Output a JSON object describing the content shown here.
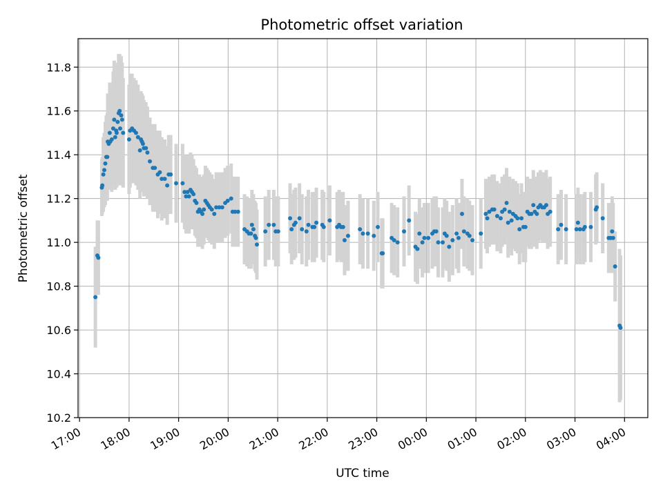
{
  "chart_data": {
    "type": "scatter",
    "title": "Photometric offset variation",
    "xlabel": "UTC time",
    "ylabel": "Photometric offset",
    "x_unit": "hours",
    "x_tick_labels": [
      "17:00",
      "18:00",
      "19:00",
      "20:00",
      "21:00",
      "22:00",
      "23:00",
      "00:00",
      "01:00",
      "02:00",
      "03:00",
      "04:00"
    ],
    "x_tick_values": [
      17,
      18,
      19,
      20,
      21,
      22,
      23,
      24,
      25,
      26,
      27,
      28
    ],
    "xlim": [
      16.97,
      28.47
    ],
    "ylim": [
      10.2,
      11.93
    ],
    "y_ticks": [
      10.2,
      10.4,
      10.6,
      10.8,
      11.0,
      11.2,
      11.4,
      11.6,
      11.8
    ],
    "y_tick_labels": [
      "10.2",
      "10.4",
      "10.6",
      "10.8",
      "11.0",
      "11.2",
      "11.4",
      "11.6",
      "11.8"
    ],
    "grid": true,
    "colors": {
      "points": "#1f77b4",
      "errorbars": "#d3d3d3",
      "grid": "#b0b0b0"
    },
    "series": [
      {
        "points": [
          [
            17.32,
            10.75,
            0.23
          ],
          [
            17.36,
            10.94,
            0.16
          ],
          [
            17.38,
            10.93,
            0.17
          ],
          [
            17.45,
            11.25,
            0.13
          ],
          [
            17.46,
            11.26,
            0.13
          ],
          [
            17.48,
            11.31,
            0.17
          ],
          [
            17.5,
            11.33,
            0.17
          ],
          [
            17.52,
            11.36,
            0.19
          ],
          [
            17.54,
            11.39,
            0.19
          ],
          [
            17.56,
            11.39,
            0.2
          ],
          [
            17.57,
            11.46,
            0.22
          ],
          [
            17.59,
            11.45,
            0.21
          ],
          [
            17.61,
            11.5,
            0.23
          ],
          [
            17.62,
            11.46,
            0.22
          ],
          [
            17.65,
            11.47,
            0.24
          ],
          [
            17.68,
            11.52,
            0.26
          ],
          [
            17.7,
            11.56,
            0.27
          ],
          [
            17.72,
            11.48,
            0.24
          ],
          [
            17.74,
            11.51,
            0.25
          ],
          [
            17.75,
            11.5,
            0.25
          ],
          [
            17.77,
            11.55,
            0.27
          ],
          [
            17.79,
            11.59,
            0.27
          ],
          [
            17.81,
            11.6,
            0.26
          ],
          [
            17.82,
            11.52,
            0.26
          ],
          [
            17.84,
            11.58,
            0.27
          ],
          [
            17.86,
            11.56,
            0.26
          ],
          [
            17.88,
            11.5,
            0.25
          ],
          [
            18.0,
            11.47,
            0.25
          ],
          [
            18.02,
            11.51,
            0.26
          ],
          [
            18.06,
            11.52,
            0.25
          ],
          [
            18.1,
            11.51,
            0.24
          ],
          [
            18.14,
            11.5,
            0.24
          ],
          [
            18.18,
            11.48,
            0.24
          ],
          [
            18.22,
            11.42,
            0.22
          ],
          [
            18.24,
            11.47,
            0.22
          ],
          [
            18.26,
            11.46,
            0.22
          ],
          [
            18.28,
            11.45,
            0.22
          ],
          [
            18.3,
            11.43,
            0.22
          ],
          [
            18.34,
            11.43,
            0.21
          ],
          [
            18.37,
            11.41,
            0.21
          ],
          [
            18.42,
            11.37,
            0.2
          ],
          [
            18.48,
            11.34,
            0.2
          ],
          [
            18.52,
            11.34,
            0.2
          ],
          [
            18.58,
            11.31,
            0.2
          ],
          [
            18.62,
            11.32,
            0.19
          ],
          [
            18.66,
            11.29,
            0.19
          ],
          [
            18.72,
            11.29,
            0.18
          ],
          [
            18.77,
            11.26,
            0.18
          ],
          [
            18.8,
            11.31,
            0.18
          ],
          [
            18.84,
            11.31,
            0.18
          ],
          [
            18.95,
            11.27,
            0.18
          ],
          [
            19.08,
            11.27,
            0.18
          ],
          [
            19.12,
            11.23,
            0.17
          ],
          [
            19.15,
            11.21,
            0.17
          ],
          [
            19.18,
            11.23,
            0.17
          ],
          [
            19.21,
            11.21,
            0.17
          ],
          [
            19.24,
            11.24,
            0.17
          ],
          [
            19.27,
            11.23,
            0.17
          ],
          [
            19.3,
            11.22,
            0.16
          ],
          [
            19.33,
            11.19,
            0.16
          ],
          [
            19.36,
            11.18,
            0.16
          ],
          [
            19.39,
            11.14,
            0.16
          ],
          [
            19.42,
            11.15,
            0.16
          ],
          [
            19.45,
            11.14,
            0.16
          ],
          [
            19.48,
            11.13,
            0.16
          ],
          [
            19.51,
            11.15,
            0.16
          ],
          [
            19.54,
            11.19,
            0.16
          ],
          [
            19.57,
            11.18,
            0.16
          ],
          [
            19.6,
            11.17,
            0.16
          ],
          [
            19.63,
            11.16,
            0.16
          ],
          [
            19.67,
            11.15,
            0.16
          ],
          [
            19.72,
            11.13,
            0.16
          ],
          [
            19.76,
            11.16,
            0.16
          ],
          [
            19.82,
            11.16,
            0.16
          ],
          [
            19.88,
            11.16,
            0.16
          ],
          [
            19.94,
            11.18,
            0.16
          ],
          [
            19.99,
            11.19,
            0.16
          ],
          [
            20.06,
            11.2,
            0.16
          ],
          [
            20.09,
            11.14,
            0.16
          ],
          [
            20.14,
            11.14,
            0.16
          ],
          [
            20.2,
            11.14,
            0.16
          ],
          [
            20.33,
            11.06,
            0.16
          ],
          [
            20.38,
            11.05,
            0.16
          ],
          [
            20.42,
            11.04,
            0.16
          ],
          [
            20.46,
            11.04,
            0.16
          ],
          [
            20.48,
            11.08,
            0.16
          ],
          [
            20.51,
            11.06,
            0.16
          ],
          [
            20.54,
            11.03,
            0.16
          ],
          [
            20.56,
            11.02,
            0.16
          ],
          [
            20.58,
            10.99,
            0.16
          ],
          [
            20.75,
            11.05,
            0.16
          ],
          [
            20.82,
            11.08,
            0.16
          ],
          [
            20.92,
            11.08,
            0.16
          ],
          [
            20.96,
            11.05,
            0.16
          ],
          [
            21.01,
            11.05,
            0.16
          ],
          [
            21.25,
            11.11,
            0.16
          ],
          [
            21.28,
            11.06,
            0.16
          ],
          [
            21.33,
            11.08,
            0.16
          ],
          [
            21.36,
            11.09,
            0.16
          ],
          [
            21.44,
            11.11,
            0.16
          ],
          [
            21.49,
            11.06,
            0.16
          ],
          [
            21.58,
            11.05,
            0.16
          ],
          [
            21.62,
            11.08,
            0.16
          ],
          [
            21.7,
            11.07,
            0.16
          ],
          [
            21.74,
            11.07,
            0.16
          ],
          [
            21.78,
            11.09,
            0.16
          ],
          [
            21.9,
            11.08,
            0.16
          ],
          [
            21.93,
            11.07,
            0.16
          ],
          [
            22.05,
            11.1,
            0.16
          ],
          [
            22.2,
            11.07,
            0.16
          ],
          [
            22.24,
            11.08,
            0.16
          ],
          [
            22.28,
            11.07,
            0.16
          ],
          [
            22.32,
            11.07,
            0.16
          ],
          [
            22.35,
            11.01,
            0.16
          ],
          [
            22.42,
            11.03,
            0.16
          ],
          [
            22.66,
            11.06,
            0.16
          ],
          [
            22.72,
            11.04,
            0.16
          ],
          [
            22.82,
            11.04,
            0.16
          ],
          [
            22.94,
            11.03,
            0.16
          ],
          [
            23.02,
            11.07,
            0.16
          ],
          [
            23.1,
            10.95,
            0.16
          ],
          [
            23.12,
            10.95,
            0.16
          ],
          [
            23.3,
            11.02,
            0.16
          ],
          [
            23.35,
            11.01,
            0.16
          ],
          [
            23.42,
            11.0,
            0.16
          ],
          [
            23.55,
            11.05,
            0.16
          ],
          [
            23.65,
            11.1,
            0.16
          ],
          [
            23.78,
            10.98,
            0.16
          ],
          [
            23.82,
            10.97,
            0.16
          ],
          [
            23.86,
            11.04,
            0.16
          ],
          [
            23.92,
            11.0,
            0.16
          ],
          [
            23.96,
            11.02,
            0.16
          ],
          [
            24.04,
            11.02,
            0.16
          ],
          [
            24.12,
            11.04,
            0.16
          ],
          [
            24.16,
            11.05,
            0.16
          ],
          [
            24.2,
            11.05,
            0.16
          ],
          [
            24.24,
            11.0,
            0.16
          ],
          [
            24.33,
            11.0,
            0.16
          ],
          [
            24.37,
            11.04,
            0.16
          ],
          [
            24.41,
            11.03,
            0.16
          ],
          [
            24.46,
            10.98,
            0.16
          ],
          [
            24.53,
            11.01,
            0.16
          ],
          [
            24.61,
            11.04,
            0.16
          ],
          [
            24.65,
            11.02,
            0.16
          ],
          [
            24.72,
            11.13,
            0.16
          ],
          [
            24.76,
            11.05,
            0.16
          ],
          [
            24.83,
            11.04,
            0.16
          ],
          [
            24.87,
            11.03,
            0.16
          ],
          [
            24.93,
            11.01,
            0.16
          ],
          [
            25.1,
            11.04,
            0.16
          ],
          [
            25.2,
            11.13,
            0.16
          ],
          [
            25.23,
            11.11,
            0.16
          ],
          [
            25.27,
            11.14,
            0.16
          ],
          [
            25.33,
            11.15,
            0.16
          ],
          [
            25.37,
            11.15,
            0.16
          ],
          [
            25.43,
            11.12,
            0.16
          ],
          [
            25.5,
            11.11,
            0.16
          ],
          [
            25.53,
            11.14,
            0.16
          ],
          [
            25.58,
            11.15,
            0.16
          ],
          [
            25.62,
            11.18,
            0.16
          ],
          [
            25.65,
            11.09,
            0.16
          ],
          [
            25.68,
            11.14,
            0.16
          ],
          [
            25.72,
            11.1,
            0.16
          ],
          [
            25.75,
            11.13,
            0.16
          ],
          [
            25.8,
            11.12,
            0.16
          ],
          [
            25.84,
            11.11,
            0.16
          ],
          [
            25.88,
            11.06,
            0.16
          ],
          [
            25.92,
            11.11,
            0.16
          ],
          [
            25.96,
            11.07,
            0.16
          ],
          [
            26.0,
            11.07,
            0.16
          ],
          [
            26.04,
            11.14,
            0.16
          ],
          [
            26.08,
            11.13,
            0.16
          ],
          [
            26.12,
            11.13,
            0.16
          ],
          [
            26.16,
            11.17,
            0.16
          ],
          [
            26.19,
            11.14,
            0.16
          ],
          [
            26.23,
            11.13,
            0.16
          ],
          [
            26.26,
            11.16,
            0.16
          ],
          [
            26.3,
            11.17,
            0.16
          ],
          [
            26.34,
            11.16,
            0.16
          ],
          [
            26.38,
            11.16,
            0.16
          ],
          [
            26.42,
            11.17,
            0.16
          ],
          [
            26.45,
            11.13,
            0.16
          ],
          [
            26.5,
            11.14,
            0.16
          ],
          [
            26.66,
            11.06,
            0.16
          ],
          [
            26.72,
            11.08,
            0.16
          ],
          [
            26.82,
            11.06,
            0.16
          ],
          [
            27.03,
            11.06,
            0.16
          ],
          [
            27.06,
            11.09,
            0.16
          ],
          [
            27.1,
            11.06,
            0.16
          ],
          [
            27.17,
            11.06,
            0.16
          ],
          [
            27.2,
            11.07,
            0.16
          ],
          [
            27.32,
            11.07,
            0.16
          ],
          [
            27.42,
            11.15,
            0.16
          ],
          [
            27.44,
            11.16,
            0.16
          ],
          [
            27.56,
            11.11,
            0.16
          ],
          [
            27.68,
            11.02,
            0.16
          ],
          [
            27.72,
            11.02,
            0.16
          ],
          [
            27.75,
            11.05,
            0.16
          ],
          [
            27.77,
            11.02,
            0.16
          ],
          [
            27.81,
            10.89,
            0.16
          ],
          [
            27.9,
            10.62,
            0.35
          ],
          [
            27.92,
            10.61,
            0.33
          ]
        ]
      }
    ]
  }
}
